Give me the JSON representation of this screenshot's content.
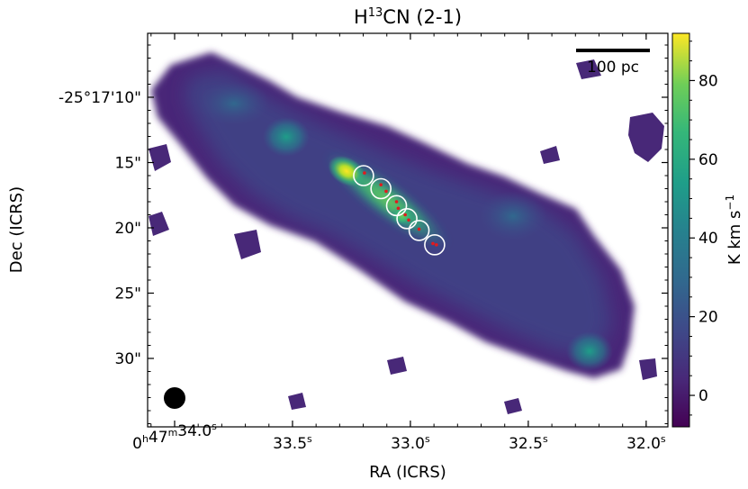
{
  "chart_data": {
    "type": "heatmap",
    "title": {
      "prefix": "H",
      "superscript": "13",
      "suffix": "CN (2-1)"
    },
    "xlabel": "RA (ICRS)",
    "ylabel": "Dec (ICRS)",
    "x_ticks": [
      {
        "offset_arcsec": 0.0,
        "h": "0",
        "m": "47",
        "s": "34.0"
      },
      {
        "offset_arcsec": 6.8,
        "s": "33.5"
      },
      {
        "offset_arcsec": 13.6,
        "s": "33.0"
      },
      {
        "offset_arcsec": 20.4,
        "s": "32.5"
      },
      {
        "offset_arcsec": 27.2,
        "s": "32.0"
      }
    ],
    "y_ticks": [
      {
        "offset_arcsec": 0,
        "label": "-25°17'10\""
      },
      {
        "offset_arcsec": -5,
        "label": "15\""
      },
      {
        "offset_arcsec": -10,
        "label": "20\""
      },
      {
        "offset_arcsec": -15,
        "label": "25\""
      },
      {
        "offset_arcsec": -20,
        "label": "30\""
      }
    ],
    "colorbar": {
      "label": "K km s",
      "label_superscript": "−1",
      "range": [
        -8,
        92
      ],
      "ticks": [
        0,
        20,
        40,
        60,
        80
      ],
      "colormap": "viridis"
    },
    "scalebar_label": "100 pc",
    "beam": "black-circle",
    "markers": {
      "circles": [
        {
          "ra_offset": 10.9,
          "dec_offset": -6.0
        },
        {
          "ra_offset": 11.9,
          "dec_offset": -7.0
        },
        {
          "ra_offset": 12.8,
          "dec_offset": -8.3
        },
        {
          "ra_offset": 13.4,
          "dec_offset": -9.3
        },
        {
          "ra_offset": 14.1,
          "dec_offset": -10.2
        },
        {
          "ra_offset": 15.0,
          "dec_offset": -11.3
        }
      ],
      "red_dots": [
        {
          "ra_offset": 10.95,
          "dec_offset": -5.8
        },
        {
          "ra_offset": 11.9,
          "dec_offset": -6.7
        },
        {
          "ra_offset": 12.2,
          "dec_offset": -7.2
        },
        {
          "ra_offset": 12.8,
          "dec_offset": -8.0
        },
        {
          "ra_offset": 12.9,
          "dec_offset": -8.5
        },
        {
          "ra_offset": 13.3,
          "dec_offset": -9.0
        },
        {
          "ra_offset": 13.5,
          "dec_offset": -9.4
        },
        {
          "ra_offset": 14.1,
          "dec_offset": -10.1
        },
        {
          "ra_offset": 14.9,
          "dec_offset": -11.2
        },
        {
          "ra_offset": 15.1,
          "dec_offset": -11.3
        }
      ]
    }
  }
}
